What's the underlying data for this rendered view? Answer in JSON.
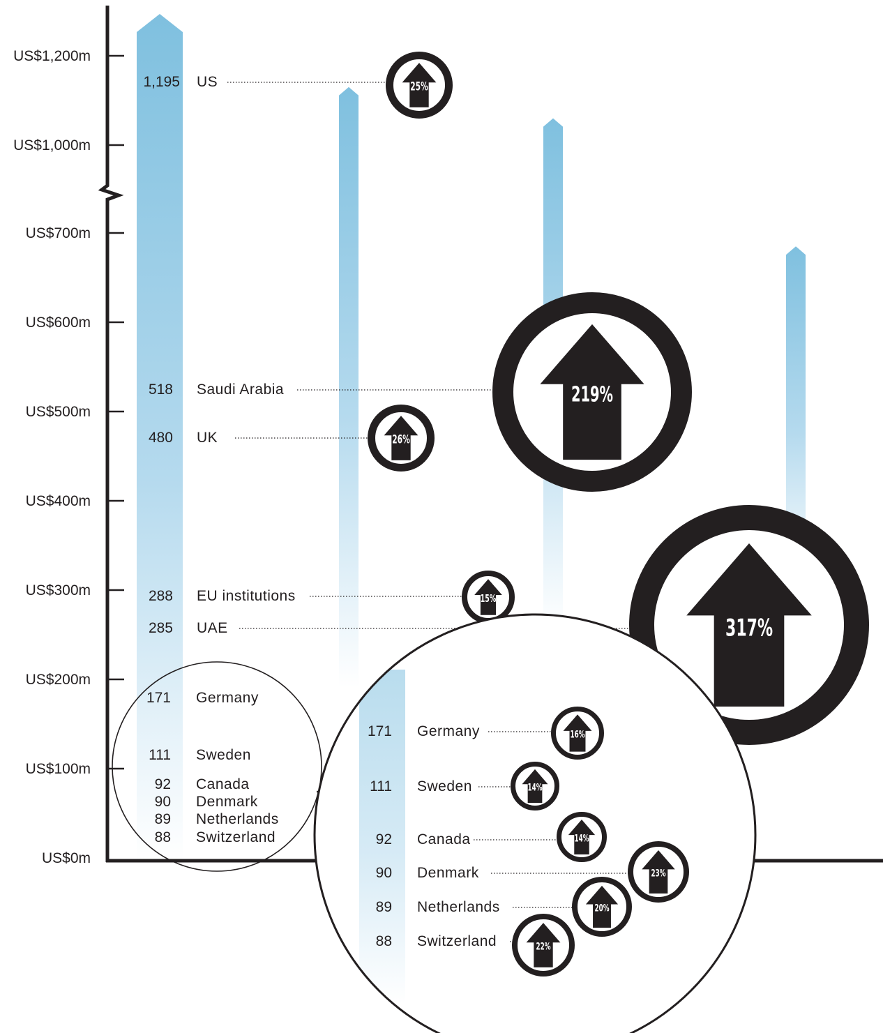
{
  "chart_data": {
    "type": "bar",
    "y_axis": {
      "ticks": [
        "US$0m",
        "US$100m",
        "US$200m",
        "US$300m",
        "US$400m",
        "US$500m",
        "US$600m",
        "US$700m",
        "US$1,000m",
        "US$1,200m"
      ],
      "tick_values": [
        0,
        100,
        200,
        300,
        400,
        500,
        600,
        700,
        1000,
        1200
      ],
      "axis_break": {
        "from": 700,
        "to": 1000
      }
    },
    "series": [
      {
        "values": [
          {
            "country": "US",
            "value": 1195,
            "value_label": "1,195",
            "change_label": "25%",
            "change": 25
          },
          {
            "country": "Saudi Arabia",
            "value": 518,
            "value_label": "518",
            "change_label": "219%",
            "change": 219
          },
          {
            "country": "UK",
            "value": 480,
            "value_label": "480",
            "change_label": "26%",
            "change": 26
          },
          {
            "country": "EU institutions",
            "value": 288,
            "value_label": "288",
            "change_label": "15%",
            "change": 15
          },
          {
            "country": "UAE",
            "value": 285,
            "value_label": "285",
            "change_label": "317%",
            "change": 317
          },
          {
            "country": "Germany",
            "value": 171,
            "value_label": "171",
            "change_label": "16%",
            "change": 16
          },
          {
            "country": "Sweden",
            "value": 111,
            "value_label": "111",
            "change_label": "14%",
            "change": 14
          },
          {
            "country": "Canada",
            "value": 92,
            "value_label": "92",
            "change_label": "14%",
            "change": 14
          },
          {
            "country": "Denmark",
            "value": 90,
            "value_label": "90",
            "change_label": "23%",
            "change": 23
          },
          {
            "country": "Netherlands",
            "value": 89,
            "value_label": "89",
            "change_label": "20%",
            "change": 20
          },
          {
            "country": "Switzerland",
            "value": 88,
            "value_label": "88",
            "change_label": "22%",
            "change": 22
          }
        ]
      }
    ],
    "background_arrow_values": [
      1195,
      1130,
      1060,
      685
    ],
    "bar_color": "#7fc0df",
    "arrow_color": "#231f20"
  }
}
